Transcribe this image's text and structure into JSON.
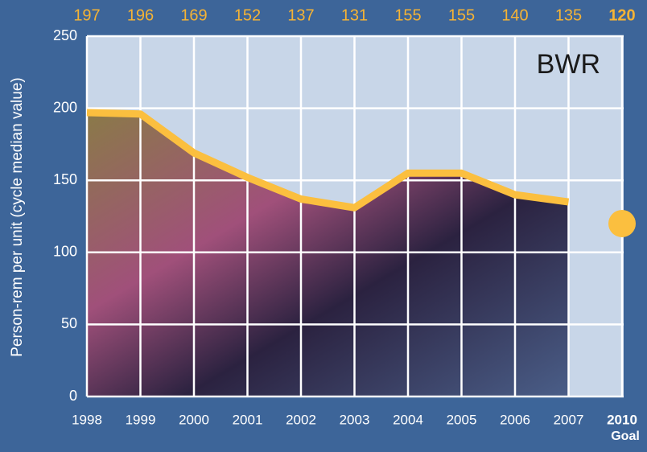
{
  "chart_data": {
    "type": "line",
    "ylabel": "Person-rem per unit (cycle median value)",
    "annotation": "BWR",
    "categories": [
      "1998",
      "1999",
      "2000",
      "2001",
      "2002",
      "2003",
      "2004",
      "2005",
      "2006",
      "2007",
      "2010"
    ],
    "series": [
      {
        "color": "#fbbf3f",
        "values": [
          197,
          196,
          169,
          152,
          137,
          131,
          155,
          155,
          140,
          135,
          null
        ]
      }
    ],
    "goal": {
      "value": 120,
      "label": "Goal",
      "color": "#fbbf3f"
    },
    "ylim": [
      0,
      250
    ],
    "yticks": [
      0,
      50,
      100,
      150,
      200,
      250
    ],
    "grid": true
  }
}
